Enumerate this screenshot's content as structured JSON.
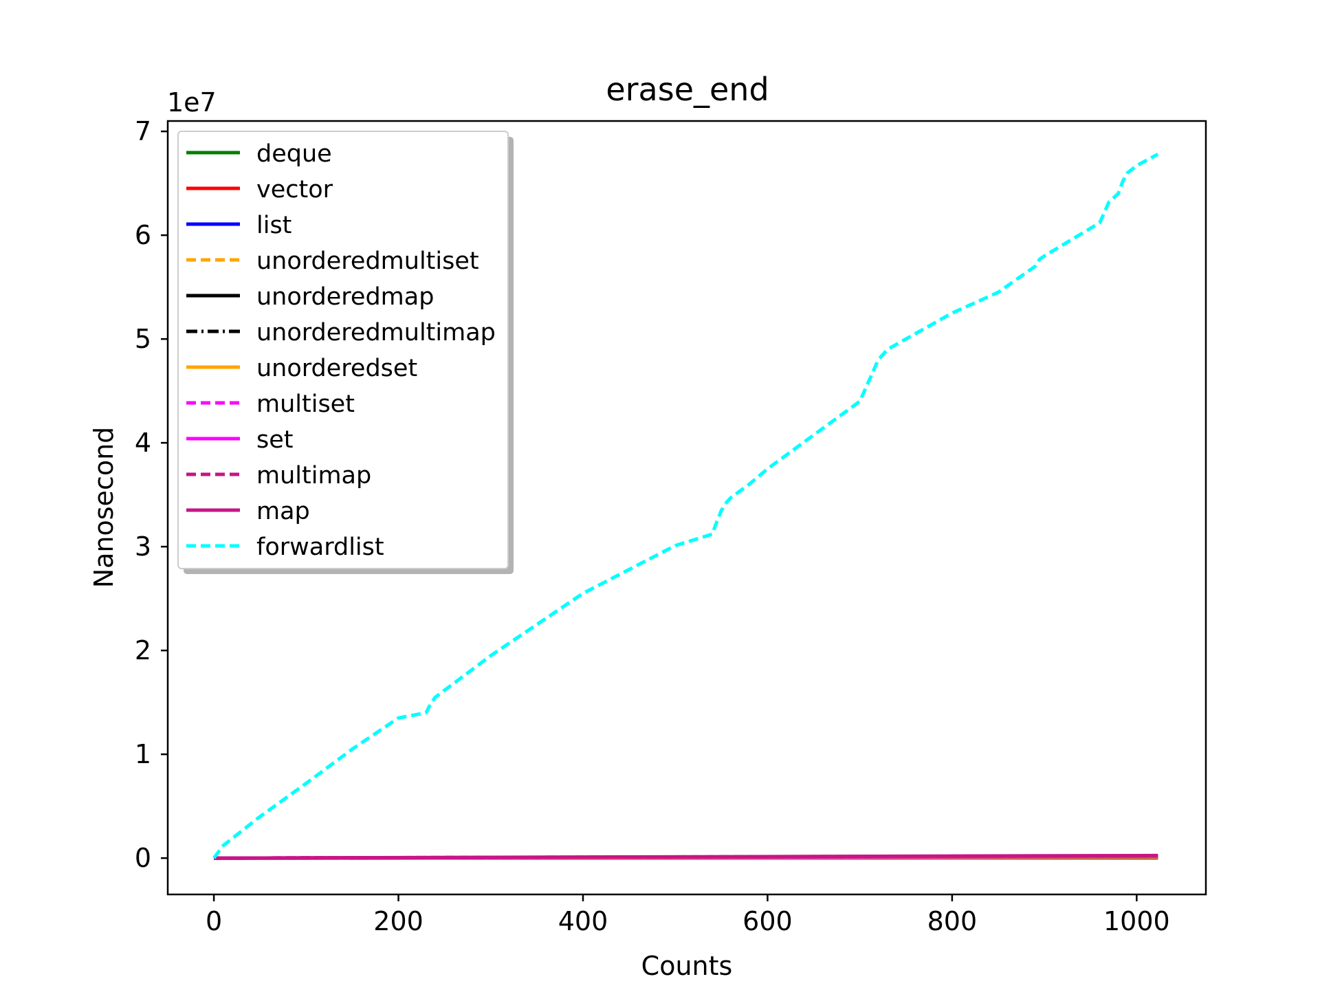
{
  "chart_data": {
    "type": "line",
    "title": "erase_end",
    "xlabel": "Counts",
    "ylabel": "Nanosecond",
    "y_offset_label": "1e7",
    "xlim": [
      -50,
      1075
    ],
    "ylim": [
      -3500000,
      71000000
    ],
    "x_ticks": [
      0,
      200,
      400,
      600,
      800,
      1000
    ],
    "y_ticks": [
      0,
      10000000,
      20000000,
      30000000,
      40000000,
      50000000,
      60000000,
      70000000
    ],
    "y_tick_labels": [
      "0",
      "1",
      "2",
      "3",
      "4",
      "5",
      "6",
      "7"
    ],
    "grid": false,
    "legend_position": "upper-left",
    "series": [
      {
        "name": "deque",
        "color": "#008000",
        "dash": "solid",
        "x": [
          0,
          1023
        ],
        "y": [
          0,
          40000
        ]
      },
      {
        "name": "vector",
        "color": "#ff0000",
        "dash": "solid",
        "x": [
          0,
          1023
        ],
        "y": [
          0,
          30000
        ]
      },
      {
        "name": "list",
        "color": "#0000ff",
        "dash": "solid",
        "x": [
          0,
          1023
        ],
        "y": [
          0,
          60000
        ]
      },
      {
        "name": "unorderedmultiset",
        "color": "#ffa500",
        "dash": "dashed",
        "x": [
          0,
          1023
        ],
        "y": [
          0,
          150000
        ]
      },
      {
        "name": "unorderedmap",
        "color": "#000000",
        "dash": "solid",
        "x": [
          0,
          1023
        ],
        "y": [
          0,
          120000
        ]
      },
      {
        "name": "unorderedmultimap",
        "color": "#000000",
        "dash": "dashdot",
        "x": [
          0,
          1023
        ],
        "y": [
          0,
          160000
        ]
      },
      {
        "name": "unorderedset",
        "color": "#ffa500",
        "dash": "solid",
        "x": [
          0,
          1023
        ],
        "y": [
          0,
          100000
        ]
      },
      {
        "name": "multiset",
        "color": "#ff00ff",
        "dash": "dashed",
        "x": [
          0,
          1023
        ],
        "y": [
          0,
          200000
        ]
      },
      {
        "name": "set",
        "color": "#ff00ff",
        "dash": "solid",
        "x": [
          0,
          1023
        ],
        "y": [
          0,
          180000
        ]
      },
      {
        "name": "multimap",
        "color": "#c71585",
        "dash": "dashed",
        "x": [
          0,
          1023
        ],
        "y": [
          0,
          230000
        ]
      },
      {
        "name": "map",
        "color": "#c71585",
        "dash": "solid",
        "x": [
          0,
          1023
        ],
        "y": [
          0,
          250000
        ]
      },
      {
        "name": "forwardlist",
        "color": "#00ffff",
        "dash": "dashed",
        "x": [
          0,
          5,
          10,
          50,
          100,
          150,
          200,
          230,
          235,
          240,
          300,
          400,
          500,
          540,
          545,
          550,
          555,
          560,
          580,
          600,
          700,
          705,
          710,
          715,
          720,
          730,
          760,
          800,
          850,
          890,
          895,
          900,
          960,
          965,
          970,
          980,
          985,
          990,
          1000,
          1023
        ],
        "y": [
          0,
          600000,
          1200000,
          4000000,
          7200000,
          10500000,
          13500000,
          14000000,
          14900000,
          15500000,
          19500000,
          25500000,
          30100000,
          31200000,
          32400000,
          33500000,
          34200000,
          34700000,
          36000000,
          37500000,
          44000000,
          45000000,
          46000000,
          47000000,
          48000000,
          49000000,
          50500000,
          52500000,
          54500000,
          57000000,
          57700000,
          58000000,
          61200000,
          62200000,
          63200000,
          64000000,
          65200000,
          66000000,
          66700000,
          67800000
        ]
      }
    ]
  }
}
